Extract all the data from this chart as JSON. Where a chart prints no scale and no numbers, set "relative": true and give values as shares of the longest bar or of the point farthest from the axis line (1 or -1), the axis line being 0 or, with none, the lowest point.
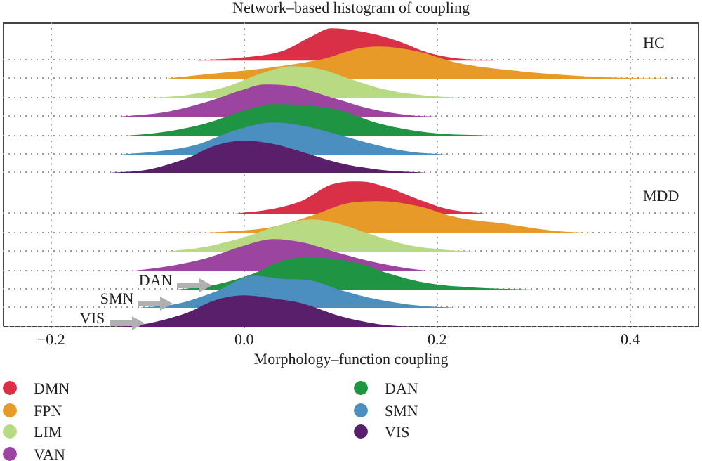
{
  "chart_data": [
    {
      "type": "area",
      "title": "Network–based histogram of coupling",
      "annotations": [
        "HC"
      ],
      "relative": true,
      "grid": "x",
      "tick_labels": "x",
      "legend": "bottom",
      "xlim": [
        -0.25,
        0.47
      ],
      "xticks": [
        {
          "value": -0.2,
          "label": "−0.2"
        },
        {
          "value": 0,
          "label": "0.0"
        },
        0.2,
        0.4
      ],
      "x": [
        -0.05,
        0.0,
        0.04,
        0.07,
        0.09,
        0.13,
        0.16,
        0.19,
        0.22,
        0.26
      ],
      "series": [
        {
          "name": "DMN",
          "color": "#d93048",
          "values": [
            0,
            0.1,
            0.3,
            0.75,
            1,
            0.85,
            0.6,
            0.25,
            0.07,
            0
          ]
        }
      ]
    },
    {
      "type": "area",
      "relative": true,
      "tick_labels": false,
      "legend": "bottom",
      "xlim": [
        -0.25,
        0.47
      ],
      "x": [
        -0.08,
        0.08,
        0.12,
        0.14,
        0.18,
        0.22,
        0.28,
        0.34,
        0.4,
        0.45
      ],
      "series": [
        {
          "name": "FPN",
          "color": "#e89a28",
          "values": [
            0,
            0.6,
            0.95,
            1,
            0.85,
            0.5,
            0.25,
            0.1,
            0.02,
            0
          ]
        }
      ]
    },
    {
      "type": "area",
      "relative": true,
      "tick_labels": false,
      "legend": "bottom",
      "xlim": [
        -0.25,
        0.47
      ],
      "x": [
        -0.1,
        -0.06,
        -0.02,
        0.02,
        0.05,
        0.08,
        0.11,
        0.15,
        0.19,
        0.24
      ],
      "series": [
        {
          "name": "LIM",
          "color": "#b8da82",
          "values": [
            0,
            0.1,
            0.35,
            0.8,
            1,
            0.9,
            0.6,
            0.25,
            0.08,
            0
          ]
        }
      ]
    },
    {
      "type": "area",
      "relative": true,
      "tick_labels": false,
      "legend": "bottom",
      "xlim": [
        -0.25,
        0.47
      ],
      "x": [
        -0.13,
        -0.08,
        -0.04,
        0.0,
        0.02,
        0.05,
        0.09,
        0.13,
        0.17,
        0.2
      ],
      "series": [
        {
          "name": "VAN",
          "color": "#9b45a0",
          "values": [
            0,
            0.15,
            0.45,
            0.85,
            1,
            0.95,
            0.6,
            0.25,
            0.05,
            0
          ]
        }
      ]
    },
    {
      "type": "area",
      "relative": true,
      "tick_labels": false,
      "legend": "bottom",
      "xlim": [
        -0.25,
        0.47
      ],
      "x": [
        -0.13,
        -0.08,
        -0.04,
        0.0,
        0.03,
        0.07,
        0.1,
        0.14,
        0.19,
        0.25,
        0.3
      ],
      "series": [
        {
          "name": "DAN",
          "color": "#1f9443",
          "values": [
            0,
            0.15,
            0.4,
            0.8,
            1,
            0.95,
            0.8,
            0.4,
            0.12,
            0.03,
            0
          ]
        }
      ]
    },
    {
      "type": "area",
      "relative": true,
      "tick_labels": false,
      "legend": "bottom",
      "xlim": [
        -0.25,
        0.47
      ],
      "x": [
        -0.13,
        -0.09,
        -0.05,
        -0.01,
        0.03,
        0.06,
        0.1,
        0.13,
        0.17,
        0.21
      ],
      "series": [
        {
          "name": "SMN",
          "color": "#4a8fc0",
          "values": [
            0,
            0.1,
            0.3,
            0.75,
            1,
            0.9,
            0.6,
            0.35,
            0.1,
            0
          ]
        }
      ]
    },
    {
      "type": "area",
      "relative": true,
      "tick_labels": false,
      "legend": "bottom",
      "xlim": [
        -0.25,
        0.47
      ],
      "x": [
        -0.14,
        -0.1,
        -0.06,
        -0.03,
        0.0,
        0.03,
        0.06,
        0.1,
        0.14,
        0.19
      ],
      "series": [
        {
          "name": "VIS",
          "color": "#5a1f6a",
          "values": [
            0,
            0.1,
            0.45,
            0.85,
            1,
            0.9,
            0.65,
            0.3,
            0.1,
            0
          ]
        }
      ]
    },
    {
      "type": "area",
      "annotations": [
        "MDD"
      ],
      "relative": true,
      "tick_labels": false,
      "xlim": [
        -0.25,
        0.47
      ],
      "x": [
        -0.01,
        0.03,
        0.06,
        0.09,
        0.12,
        0.15,
        0.18,
        0.21,
        0.25
      ],
      "series": [
        {
          "color": "#d93048",
          "values": [
            0,
            0.15,
            0.4,
            0.9,
            1,
            0.8,
            0.45,
            0.15,
            0
          ]
        }
      ]
    },
    {
      "type": "area",
      "relative": true,
      "tick_labels": false,
      "xlim": [
        -0.25,
        0.47
      ],
      "x": [
        -0.07,
        -0.02,
        0.03,
        0.07,
        0.11,
        0.14,
        0.18,
        0.22,
        0.27,
        0.32,
        0.36
      ],
      "series": [
        {
          "color": "#e89a28",
          "values": [
            0,
            0.05,
            0.2,
            0.55,
            0.95,
            1,
            0.85,
            0.5,
            0.3,
            0.08,
            0
          ]
        }
      ]
    },
    {
      "type": "area",
      "relative": true,
      "tick_labels": false,
      "xlim": [
        -0.25,
        0.47
      ],
      "x": [
        -0.08,
        -0.04,
        0.0,
        0.04,
        0.07,
        0.1,
        0.13,
        0.17,
        0.21,
        0.24
      ],
      "series": [
        {
          "color": "#b8da82",
          "values": [
            0,
            0.15,
            0.45,
            0.85,
            1,
            0.85,
            0.55,
            0.2,
            0.05,
            0
          ]
        }
      ]
    },
    {
      "type": "area",
      "relative": true,
      "tick_labels": false,
      "xlim": [
        -0.25,
        0.47
      ],
      "x": [
        -0.12,
        -0.08,
        -0.04,
        0.0,
        0.03,
        0.06,
        0.1,
        0.14,
        0.18,
        0.21
      ],
      "series": [
        {
          "color": "#9b45a0",
          "values": [
            0,
            0.15,
            0.4,
            0.8,
            1,
            0.9,
            0.55,
            0.25,
            0.05,
            0
          ]
        }
      ]
    },
    {
      "type": "area",
      "relative": true,
      "tick_labels": false,
      "xlim": [
        -0.25,
        0.47
      ],
      "x": [
        -0.07,
        -0.03,
        0.01,
        0.04,
        0.06,
        0.09,
        0.12,
        0.15,
        0.19,
        0.24,
        0.3
      ],
      "series": [
        {
          "name": "DAN",
          "color": "#1f9443",
          "values": [
            0,
            0.15,
            0.5,
            0.9,
            1,
            0.97,
            0.8,
            0.5,
            0.2,
            0.06,
            0
          ]
        }
      ]
    },
    {
      "type": "area",
      "relative": true,
      "tick_labels": false,
      "xlim": [
        -0.25,
        0.47
      ],
      "x": [
        -0.11,
        -0.07,
        -0.03,
        0.01,
        0.04,
        0.07,
        0.1,
        0.14,
        0.18,
        0.22
      ],
      "series": [
        {
          "name": "SMN",
          "color": "#4a8fc0",
          "values": [
            0,
            0.12,
            0.5,
            1,
            0.9,
            0.85,
            0.55,
            0.25,
            0.07,
            0
          ]
        }
      ]
    },
    {
      "type": "area",
      "xlabel": "Morphology–function coupling",
      "relative": true,
      "tick_labels": false,
      "xlim": [
        -0.25,
        0.47
      ],
      "x": [
        -0.14,
        -0.1,
        -0.06,
        -0.03,
        0.0,
        0.03,
        0.06,
        0.1,
        0.14,
        0.19
      ],
      "series": [
        {
          "name": "VIS",
          "color": "#5a1f6a",
          "values": [
            0,
            0.12,
            0.45,
            0.85,
            1,
            0.9,
            0.75,
            0.35,
            0.1,
            0
          ]
        }
      ]
    }
  ]
}
